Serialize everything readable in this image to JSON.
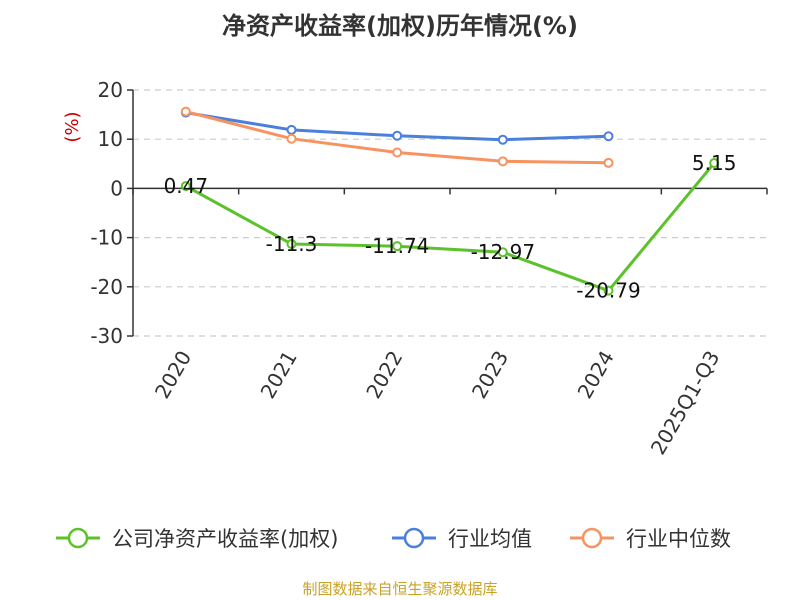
{
  "chart_data": {
    "type": "line",
    "title": "净资产收益率(加权)历年情况(%)",
    "ylabel": "(%)",
    "categories": [
      "2020",
      "2021",
      "2022",
      "2023",
      "2024",
      "2025Q1-Q3"
    ],
    "ylim": [
      -30,
      20
    ],
    "yticks": [
      20,
      10,
      0,
      -10,
      -20,
      -30
    ],
    "grid": true,
    "legend_position": "bottom",
    "series": [
      {
        "name": "公司净资产收益率(加权)",
        "color": "#5cc22b",
        "values": [
          0.47,
          -11.3,
          -11.74,
          -12.97,
          -20.79,
          5.15
        ],
        "labels": [
          "0.47",
          "-11.3",
          "-11.74",
          "-12.97",
          "-20.79",
          "5.15"
        ]
      },
      {
        "name": "行业均值",
        "color": "#4a7fdc",
        "values": [
          15.4,
          11.9,
          10.7,
          9.9,
          10.6,
          null
        ]
      },
      {
        "name": "行业中位数",
        "color": "#f79360",
        "values": [
          15.6,
          10.1,
          7.3,
          5.5,
          5.2,
          null
        ]
      }
    ]
  },
  "source_text": "制图数据来自恒生聚源数据库"
}
